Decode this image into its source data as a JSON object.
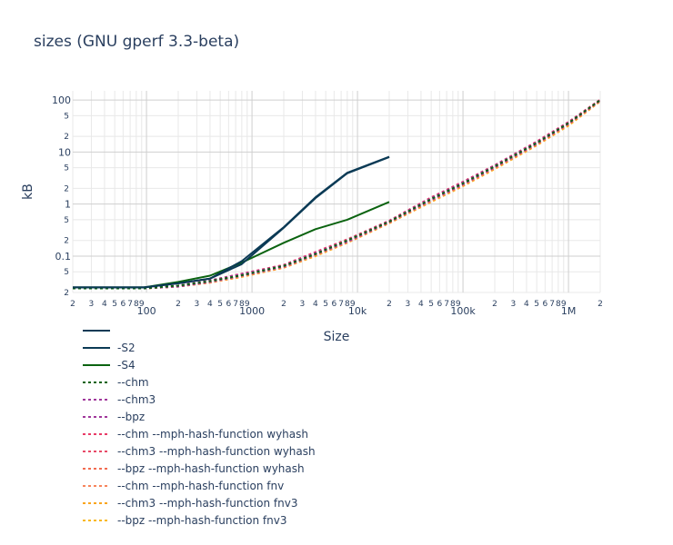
{
  "chart_data": {
    "type": "line",
    "title": "sizes (GNU gperf 3.3-beta)",
    "xlabel": "Size",
    "ylabel": "kB",
    "x_scale": "log",
    "y_scale": "log",
    "xlim": [
      20,
      2000000
    ],
    "ylim": [
      0.02,
      150
    ],
    "x_major_ticks": [
      {
        "value": 100,
        "label": "100"
      },
      {
        "value": 1000,
        "label": "1000"
      },
      {
        "value": 10000,
        "label": "10k"
      },
      {
        "value": 100000,
        "label": "100k"
      },
      {
        "value": 1000000,
        "label": "1M"
      }
    ],
    "x_minor_tick_labels": [
      "2",
      "3",
      "4",
      "5",
      "6",
      "7",
      "8",
      "9"
    ],
    "x_leading_label": "2",
    "x_trailing_label": "2",
    "y_major_ticks": [
      {
        "value": 0.1,
        "label": "0.1"
      },
      {
        "value": 1,
        "label": "1"
      },
      {
        "value": 10,
        "label": "10"
      },
      {
        "value": 100,
        "label": "100"
      }
    ],
    "y_minor_ticks": [
      {
        "value": 0.02,
        "label": "2"
      },
      {
        "value": 0.05,
        "label": "5"
      },
      {
        "value": 0.2,
        "label": "2"
      },
      {
        "value": 0.5,
        "label": "5"
      },
      {
        "value": 2,
        "label": "2"
      },
      {
        "value": 5,
        "label": "5"
      },
      {
        "value": 20,
        "label": "2"
      },
      {
        "value": 50,
        "label": "5"
      }
    ],
    "grid": true,
    "legend_position": "bottom-left",
    "series": [
      {
        "name": "",
        "color": "#0b3a55",
        "dash": "solid",
        "x": [
          20,
          95,
          200,
          400,
          800,
          2000,
          4000,
          8000,
          20000
        ],
        "y": [
          0.025,
          0.025,
          0.03,
          0.037,
          0.07,
          0.35,
          1.3,
          3.9,
          8.0
        ]
      },
      {
        "name": "-S2",
        "color": "#0b3a55",
        "dash": "solid",
        "x": [
          20,
          95,
          200,
          400,
          800,
          2000,
          4000,
          8000,
          20000
        ],
        "y": [
          0.025,
          0.025,
          0.03,
          0.037,
          0.08,
          0.36,
          1.35,
          4.0,
          8.1
        ]
      },
      {
        "name": "-S4",
        "color": "#0b6310",
        "dash": "solid",
        "x": [
          20,
          95,
          200,
          400,
          800,
          2000,
          4000,
          8000,
          20000
        ],
        "y": [
          0.025,
          0.025,
          0.032,
          0.042,
          0.075,
          0.18,
          0.33,
          0.5,
          1.1
        ]
      },
      {
        "name": "--chm",
        "color": "#0b6310",
        "dash": "dot",
        "x": [
          20,
          95,
          200,
          400,
          800,
          2000,
          4000,
          8000,
          20000,
          50000,
          100000,
          200000,
          500000,
          1000000,
          2000000
        ],
        "y": [
          0.024,
          0.024,
          0.027,
          0.033,
          0.043,
          0.065,
          0.11,
          0.2,
          0.46,
          1.25,
          2.5,
          5.3,
          15,
          36,
          100
        ]
      },
      {
        "name": "--chm3",
        "color": "#a0379b",
        "dash": "dot",
        "x": [
          20,
          95,
          200,
          400,
          800,
          2000,
          4000,
          8000,
          20000,
          50000,
          100000,
          200000,
          500000,
          1000000,
          2000000
        ],
        "y": [
          0.024,
          0.024,
          0.027,
          0.034,
          0.045,
          0.066,
          0.115,
          0.2,
          0.47,
          1.3,
          2.6,
          5.5,
          15.5,
          37,
          100
        ]
      },
      {
        "name": "--bpz",
        "color": "#a0379b",
        "dash": "dot",
        "x": [
          20,
          95,
          200,
          400,
          800,
          2000,
          4000,
          8000,
          20000,
          50000,
          100000,
          200000,
          500000,
          1000000,
          2000000
        ],
        "y": [
          0.024,
          0.024,
          0.026,
          0.032,
          0.042,
          0.063,
          0.108,
          0.19,
          0.45,
          1.2,
          2.4,
          5.1,
          14.5,
          35,
          98
        ]
      },
      {
        "name": "--chm --mph-hash-function wyhash",
        "color": "#e83b67",
        "dash": "dot",
        "x": [
          20,
          95,
          200,
          400,
          800,
          2000,
          4000,
          8000,
          20000,
          50000,
          100000,
          200000,
          500000,
          1000000,
          2000000
        ],
        "y": [
          0.024,
          0.024,
          0.027,
          0.034,
          0.046,
          0.068,
          0.12,
          0.21,
          0.48,
          1.35,
          2.7,
          5.6,
          16,
          38,
          102
        ]
      },
      {
        "name": "--chm3 --mph-hash-function wyhash",
        "color": "#e84a68",
        "dash": "dot",
        "x": [
          20,
          95,
          200,
          400,
          800,
          2000,
          4000,
          8000,
          20000,
          50000,
          100000,
          200000,
          500000,
          1000000,
          2000000
        ],
        "y": [
          0.024,
          0.024,
          0.027,
          0.034,
          0.046,
          0.067,
          0.118,
          0.205,
          0.47,
          1.3,
          2.6,
          5.4,
          15.5,
          37,
          101
        ]
      },
      {
        "name": "--bpz --mph-hash-function wyhash",
        "color": "#f26b50",
        "dash": "dot",
        "x": [
          20,
          95,
          200,
          400,
          800,
          2000,
          4000,
          8000,
          20000,
          50000,
          100000,
          200000,
          500000,
          1000000,
          2000000
        ],
        "y": [
          0.024,
          0.024,
          0.026,
          0.032,
          0.042,
          0.062,
          0.106,
          0.19,
          0.44,
          1.18,
          2.35,
          5.0,
          14.2,
          34,
          97
        ]
      },
      {
        "name": "--chm --mph-hash-function fnv",
        "color": "#f7855c",
        "dash": "dot",
        "x": [
          20,
          95,
          200,
          400,
          800,
          2000,
          4000,
          8000,
          20000,
          50000,
          100000,
          200000,
          500000,
          1000000,
          2000000
        ],
        "y": [
          0.024,
          0.024,
          0.026,
          0.031,
          0.041,
          0.061,
          0.104,
          0.185,
          0.44,
          1.15,
          2.3,
          4.9,
          14,
          34,
          96
        ]
      },
      {
        "name": "--chm3 --mph-hash-function fnv3",
        "color": "#f9a51e",
        "dash": "dot",
        "x": [
          20,
          95,
          200,
          400,
          800,
          2000,
          4000,
          8000,
          20000,
          50000,
          100000,
          200000,
          500000,
          1000000,
          2000000
        ],
        "y": [
          0.024,
          0.024,
          0.026,
          0.031,
          0.04,
          0.06,
          0.102,
          0.18,
          0.43,
          1.12,
          2.25,
          4.8,
          13.6,
          33,
          95
        ]
      },
      {
        "name": "--bpz --mph-hash-function fnv3",
        "color": "#f9b81e",
        "dash": "dot",
        "x": [
          20,
          95,
          200,
          400,
          800,
          2000,
          4000,
          8000,
          20000,
          50000,
          100000,
          200000,
          500000,
          1000000,
          2000000
        ],
        "y": [
          0.024,
          0.024,
          0.026,
          0.031,
          0.04,
          0.06,
          0.1,
          0.18,
          0.43,
          1.1,
          2.2,
          4.7,
          13.4,
          32,
          94
        ]
      }
    ]
  }
}
